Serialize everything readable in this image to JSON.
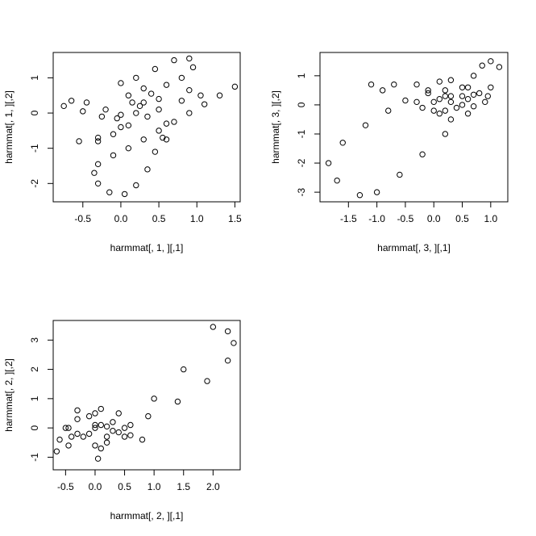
{
  "chart_data": [
    {
      "type": "scatter",
      "x_label": "harmmat[, 1, ][,1]",
      "y_label": "harmmat[, 1, ][,2]",
      "x": [
        1.5,
        1.3,
        1.1,
        0.9,
        0.7,
        0.5,
        0.3,
        0.1,
        -0.1,
        -0.3,
        -0.35,
        -0.3,
        -0.15,
        0.05,
        0.2,
        0.35,
        0.45,
        0.55,
        0.6,
        0.5,
        0.3,
        0.1,
        0.0,
        0.2,
        0.45,
        0.7,
        0.9,
        0.95,
        0.8,
        0.6,
        0.9,
        1.05,
        0.8,
        0.5,
        0.25,
        0.0,
        -0.2,
        -0.45,
        -0.65,
        -0.75,
        -0.5,
        -0.25,
        -0.05,
        0.1,
        -0.1,
        -0.3,
        -0.55,
        -0.3,
        0.0,
        0.2,
        0.4,
        0.3,
        0.15,
        0.35,
        0.6
      ],
      "y": [
        0.75,
        0.5,
        0.25,
        0.0,
        -0.25,
        -0.5,
        -0.75,
        -1.0,
        -1.2,
        -1.45,
        -1.7,
        -2.0,
        -2.25,
        -2.3,
        -2.05,
        -1.6,
        -1.1,
        -0.7,
        -0.3,
        0.1,
        0.3,
        0.5,
        0.85,
        1.0,
        1.25,
        1.5,
        1.55,
        1.3,
        1.0,
        0.8,
        0.65,
        0.5,
        0.35,
        0.4,
        0.2,
        -0.05,
        0.1,
        0.3,
        0.35,
        0.2,
        0.05,
        -0.1,
        -0.15,
        -0.35,
        -0.6,
        -0.8,
        -0.8,
        -0.7,
        -0.4,
        0.0,
        0.55,
        0.7,
        0.3,
        -0.1,
        -0.75
      ],
      "xlim": [
        -0.89,
        1.57
      ],
      "ylim": [
        -2.52,
        1.72
      ],
      "xticks": [
        -0.5,
        {
          "value": 0,
          "label": "0.0"
        },
        0.5,
        {
          "value": 1,
          "label": "1.0"
        },
        1.5
      ],
      "yticks": [
        -2,
        -1,
        0,
        1
      ]
    },
    {
      "type": "scatter",
      "x_label": "harmmat[, 3, ][,1]",
      "y_label": "harmmat[, 3, ][,2]",
      "x": [
        0.2,
        0.5,
        0.7,
        0.85,
        1.0,
        1.15,
        1.0,
        0.6,
        0.2,
        -0.2,
        -0.6,
        -1.0,
        -1.3,
        -1.7,
        -1.85,
        -1.6,
        -1.2,
        -0.8,
        -0.5,
        -0.9,
        -1.1,
        -0.7,
        -0.3,
        -0.1,
        0.1,
        0.3,
        0.2,
        0.0,
        -0.2,
        0.1,
        0.3,
        0.4,
        0.6,
        0.8,
        0.9,
        0.7,
        0.5,
        0.3,
        0.1,
        -0.1,
        0.2,
        0.5,
        0.7,
        0.95,
        0.6,
        0.3,
        0.0,
        -0.3
      ],
      "y": [
        0.3,
        0.6,
        1.0,
        1.35,
        1.5,
        1.3,
        0.6,
        -0.3,
        -1.0,
        -1.7,
        -2.4,
        -3.0,
        -3.1,
        -2.6,
        -2.0,
        -1.3,
        -0.7,
        -0.2,
        0.15,
        0.5,
        0.7,
        0.7,
        0.7,
        0.5,
        0.8,
        0.85,
        0.5,
        0.1,
        -0.1,
        -0.3,
        -0.5,
        -0.1,
        0.2,
        0.4,
        0.1,
        -0.05,
        0.3,
        0.1,
        0.2,
        0.4,
        -0.2,
        0.0,
        0.35,
        0.3,
        0.6,
        0.3,
        -0.2,
        0.1
      ],
      "xlim": [
        -2.0,
        1.3
      ],
      "ylim": [
        -3.33,
        1.8
      ],
      "xticks": [
        -1.5,
        {
          "value": -1,
          "label": "-1.0"
        },
        -0.5,
        {
          "value": 0,
          "label": "0.0"
        },
        0.5,
        {
          "value": 1,
          "label": "1.0"
        }
      ],
      "yticks": [
        -3,
        -2,
        -1,
        0,
        1
      ]
    },
    {
      "type": "scatter",
      "x_label": "harmmat[, 2, ][,1]",
      "y_label": "harmmat[, 2, ][,2]",
      "x": [
        0.1,
        0.4,
        1.0,
        1.5,
        2.0,
        2.25,
        2.35,
        2.25,
        1.9,
        1.4,
        0.9,
        0.6,
        0.3,
        0.0,
        -0.3,
        -0.5,
        -0.6,
        -0.65,
        -0.45,
        -0.2,
        0.0,
        0.05,
        0.1,
        0.2,
        0.4,
        0.6,
        0.8,
        0.5,
        0.2,
        0.0,
        0.1,
        -0.1,
        -0.3,
        -0.45,
        -0.3,
        0.0,
        0.3,
        0.5,
        0.2,
        -0.1,
        -0.4
      ],
      "y": [
        0.1,
        0.5,
        1.0,
        2.0,
        3.45,
        3.3,
        2.9,
        2.3,
        1.6,
        0.9,
        0.4,
        0.1,
        -0.1,
        0.1,
        0.3,
        0.0,
        -0.4,
        -0.8,
        -0.6,
        -0.3,
        -0.6,
        -1.05,
        -0.7,
        -0.3,
        -0.15,
        -0.25,
        -0.4,
        -0.3,
        0.05,
        0.5,
        0.65,
        0.4,
        0.6,
        0.0,
        -0.2,
        0.0,
        0.2,
        0.0,
        -0.5,
        -0.2,
        -0.3
      ],
      "xlim": [
        -0.71,
        2.46
      ],
      "ylim": [
        -1.43,
        3.67
      ],
      "xticks": [
        -0.5,
        {
          "value": 0,
          "label": "0.0"
        },
        0.5,
        {
          "value": 1,
          "label": "1.0"
        },
        1.5,
        {
          "value": 2,
          "label": "2.0"
        }
      ],
      "yticks": [
        -1,
        0,
        1,
        2,
        3
      ]
    }
  ]
}
